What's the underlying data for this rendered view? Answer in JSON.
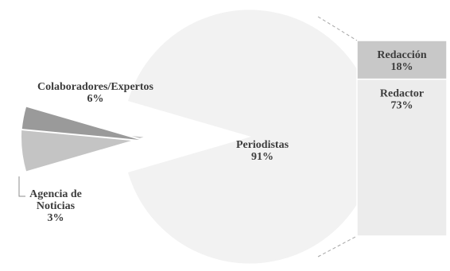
{
  "chart_data": {
    "type": "pie",
    "title": "",
    "main_pie": {
      "slices": [
        {
          "label_lines": [
            "Periodistas",
            "91%"
          ],
          "value": 91,
          "color": "#f2f2f2"
        },
        {
          "label_lines": [
            "Colaboradores/Expertos",
            "6%"
          ],
          "value": 6,
          "color": "#c4c4c4"
        },
        {
          "label_lines": [
            "Agencia de",
            "Noticias",
            "3%"
          ],
          "value": 3,
          "color": "#9a9a9a"
        }
      ]
    },
    "breakdown_bar": {
      "of": "Periodistas",
      "segments": [
        {
          "label_lines": [
            "Redacción",
            "18%"
          ],
          "value": 18,
          "color": "#c8c8c8"
        },
        {
          "label_lines": [
            "Redactor",
            "73%"
          ],
          "value": 73,
          "color": "#ececec"
        }
      ]
    }
  }
}
